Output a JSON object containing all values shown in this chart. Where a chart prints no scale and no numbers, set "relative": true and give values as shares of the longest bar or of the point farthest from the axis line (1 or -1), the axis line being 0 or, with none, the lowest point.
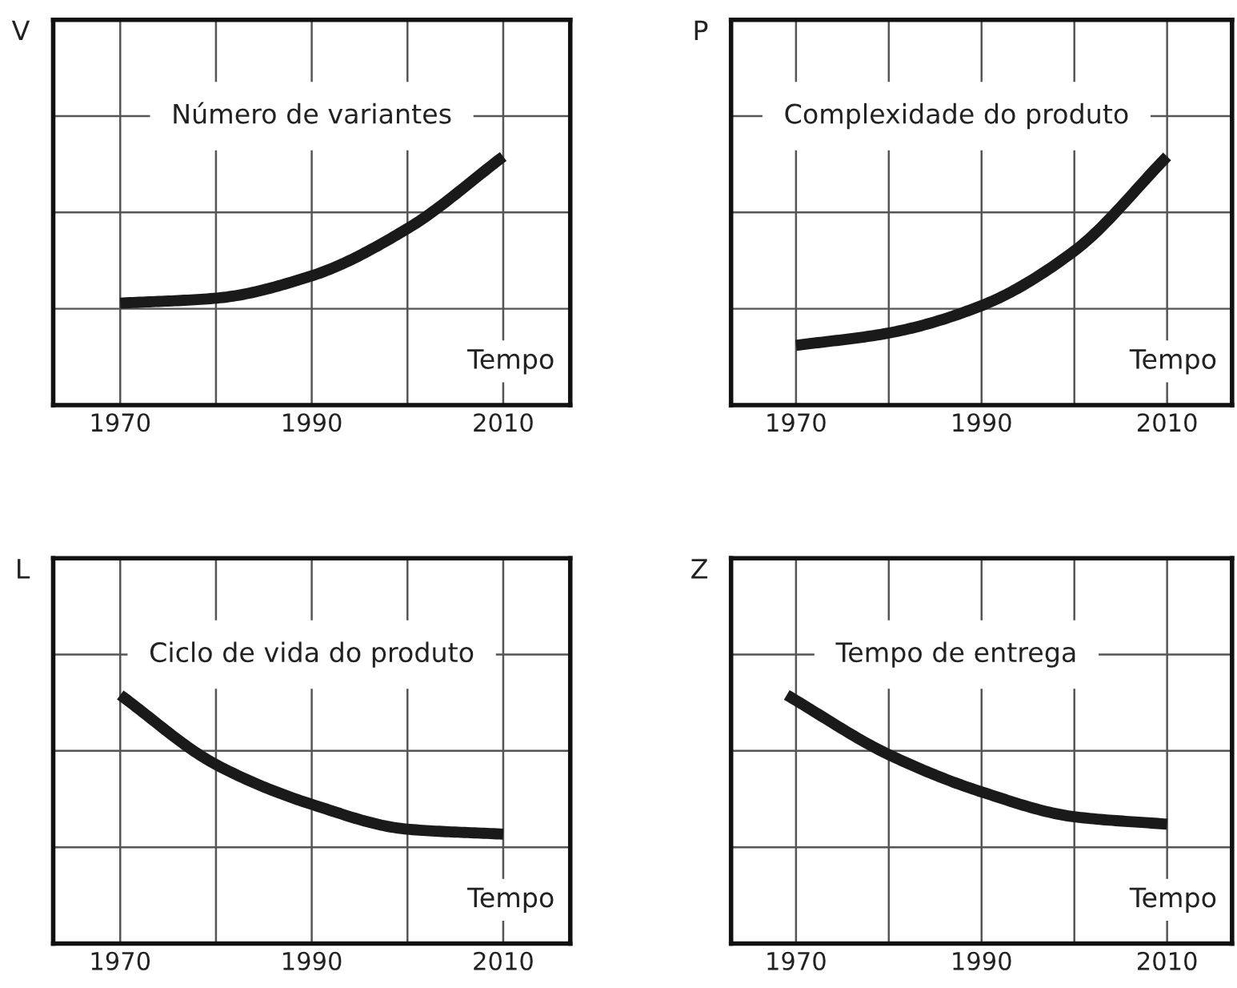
{
  "chart_data": [
    {
      "type": "line",
      "title": "Número de variantes",
      "ylabel": "V",
      "xlabel": "Tempo",
      "relative": true,
      "x": [
        1970,
        1980,
        1990,
        2000,
        2010
      ],
      "xlim": [
        1963,
        2017
      ],
      "xticks": [
        1970,
        1990,
        2010
      ],
      "grid": true,
      "series": [
        {
          "color": "#1a1a1a",
          "values": [
            0.41,
            0.43,
            0.52,
            0.71,
            1
          ]
        }
      ]
    },
    {
      "type": "line",
      "title": "Complexidade do produto",
      "ylabel": "P",
      "xlabel": "Tempo",
      "relative": true,
      "x": [
        1970,
        1980,
        1990,
        2000,
        2010
      ],
      "xlim": [
        1963,
        2017
      ],
      "xticks": [
        1970,
        1990,
        2010
      ],
      "grid": true,
      "series": [
        {
          "color": "#1a1a1a",
          "values": [
            0.24,
            0.29,
            0.4,
            0.62,
            1
          ]
        }
      ]
    },
    {
      "type": "line",
      "title": "Ciclo de vida do produto",
      "ylabel": "L",
      "xlabel": "Tempo",
      "relative": true,
      "x": [
        1970,
        1980,
        1990,
        2000,
        2010
      ],
      "xlim": [
        1963,
        2017
      ],
      "xticks": [
        1970,
        1990,
        2010
      ],
      "grid": true,
      "series": [
        {
          "color": "#1a1a1a",
          "values": [
            1,
            0.72,
            0.56,
            0.46,
            0.44
          ]
        }
      ]
    },
    {
      "type": "line",
      "title": "Tempo de entrega",
      "ylabel": "Z",
      "xlabel": "Tempo",
      "relative": true,
      "x": [
        1969,
        1980,
        1990,
        2000,
        2010
      ],
      "xlim": [
        1963,
        2017
      ],
      "xticks": [
        1970,
        1990,
        2010
      ],
      "grid": true,
      "series": [
        {
          "color": "#1a1a1a",
          "values": [
            1,
            0.76,
            0.61,
            0.51,
            0.48
          ]
        }
      ]
    }
  ]
}
